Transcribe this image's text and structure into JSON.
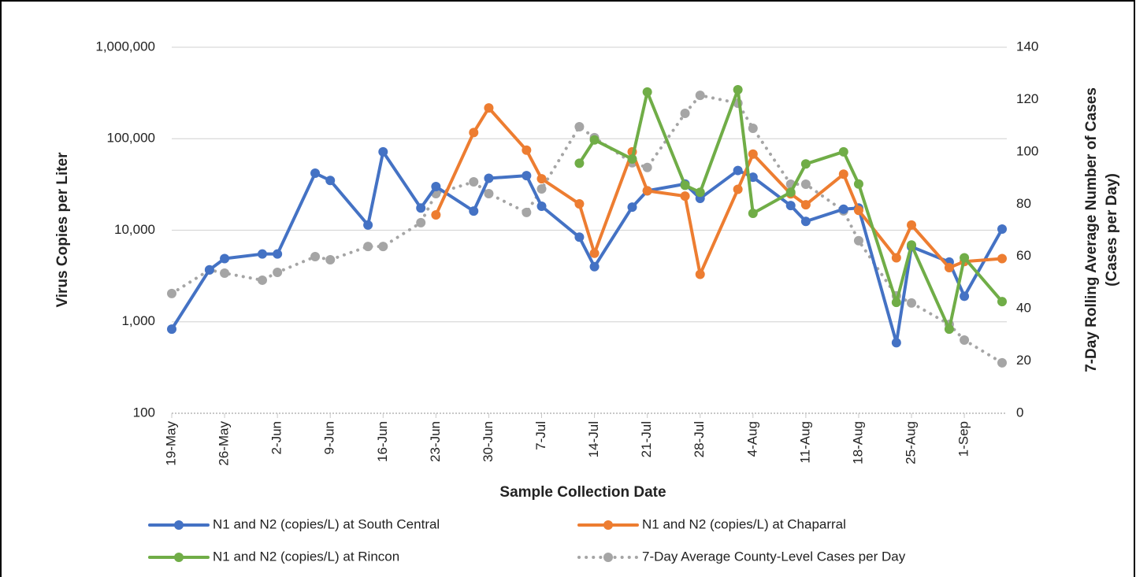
{
  "chart_data": {
    "type": "line",
    "x_label": "Sample Collection Date",
    "y_label": "Virus Copies per Liter",
    "y2_label": [
      "7-Day Rolling Average Number of Cases",
      "(Cases per Day)"
    ],
    "yscale": "log",
    "grid": true,
    "ylim": [
      100,
      1000000
    ],
    "yticks": [
      {
        "value": 100,
        "label": "100"
      },
      {
        "value": 1000,
        "label": "1,000"
      },
      {
        "value": 10000,
        "label": "10,000"
      },
      {
        "value": 100000,
        "label": "100,000"
      },
      {
        "value": 1000000,
        "label": "1,000,000"
      }
    ],
    "y2lim": [
      0,
      140
    ],
    "y2ticks": [
      0,
      20,
      40,
      60,
      80,
      100,
      120,
      140
    ],
    "xlim": [
      "19-May",
      "6-Sep"
    ],
    "xticks": [
      "19-May",
      "26-May",
      "2-Jun",
      "9-Jun",
      "16-Jun",
      "23-Jun",
      "30-Jun",
      "7-Jul",
      "14-Jul",
      "21-Jul",
      "28-Jul",
      "4-Aug",
      "11-Aug",
      "18-Aug",
      "25-Aug",
      "1-Sep"
    ],
    "x": [
      "19-May",
      "24-May",
      "26-May",
      "31-May",
      "2-Jun",
      "7-Jun",
      "9-Jun",
      "14-Jun",
      "16-Jun",
      "21-Jun",
      "23-Jun",
      "28-Jun",
      "30-Jun",
      "5-Jul",
      "7-Jul",
      "12-Jul",
      "14-Jul",
      "19-Jul",
      "21-Jul",
      "26-Jul",
      "28-Jul",
      "2-Aug",
      "4-Aug",
      "9-Aug",
      "11-Aug",
      "16-Aug",
      "18-Aug",
      "23-Aug",
      "25-Aug",
      "30-Aug",
      "1-Sep",
      "6-Sep"
    ],
    "series": [
      {
        "name": "N1 and N2 (copies/L) at South Central",
        "color": "#4472c4",
        "line_style": "solid",
        "values": [
          830,
          3700,
          4900,
          5500,
          5500,
          42000,
          35000,
          11400,
          72000,
          17500,
          30000,
          16200,
          37000,
          39500,
          18300,
          8400,
          4000,
          17900,
          27000,
          32000,
          22300,
          45000,
          38000,
          18600,
          12500,
          17000,
          17500,
          590,
          6600,
          4500,
          1900,
          10300
        ]
      },
      {
        "name": "N1 and N2 (copies/L) at Chaparral",
        "color": "#ed7d31",
        "line_style": "solid",
        "values": [
          null,
          null,
          null,
          null,
          null,
          null,
          null,
          null,
          null,
          null,
          14700,
          117000,
          217000,
          75000,
          36500,
          19400,
          5600,
          72000,
          27000,
          23600,
          3300,
          28000,
          68000,
          25000,
          19000,
          41000,
          16500,
          5000,
          11400,
          3900,
          4550,
          4900
        ]
      },
      {
        "name": "N1 and N2 (copies/L) at Rincon",
        "color": "#70ad47",
        "line_style": "solid",
        "values": [
          null,
          null,
          null,
          null,
          null,
          null,
          null,
          null,
          null,
          null,
          null,
          null,
          null,
          null,
          null,
          54000,
          97000,
          60000,
          324000,
          31000,
          26000,
          343000,
          15300,
          26000,
          53000,
          72000,
          32000,
          1630,
          6900,
          830,
          5000,
          1660
        ]
      },
      {
        "name": "7-Day Average County-Level Cases per Day",
        "color": "#a5a5a5",
        "line_style": "dotted",
        "axis": "y2",
        "values": [
          45.8,
          54.8,
          53.6,
          50.9,
          53.9,
          59.9,
          58.7,
          63.8,
          63.8,
          72.9,
          84,
          88.5,
          84,
          76.8,
          85.8,
          109.6,
          105.4,
          95.8,
          94,
          114.7,
          121.6,
          118.6,
          109,
          87.6,
          87.6,
          77.4,
          66,
          44.9,
          42.2,
          34,
          28,
          19.3
        ]
      }
    ]
  }
}
